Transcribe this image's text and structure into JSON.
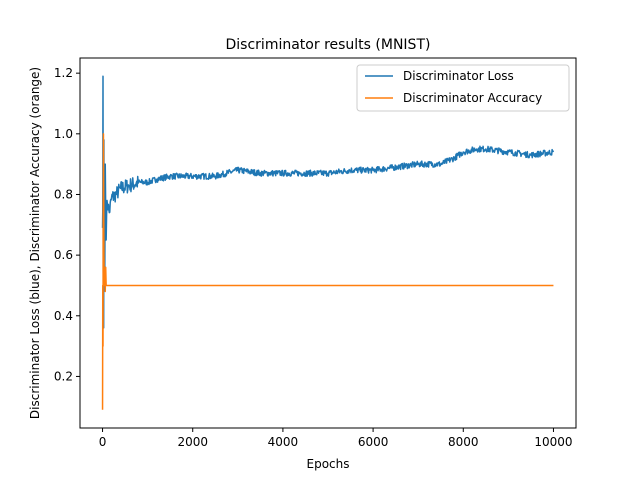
{
  "chart_data": {
    "type": "line",
    "title": "Discriminator results (MNIST)",
    "xlabel": "Epochs",
    "ylabel": "Discriminator Loss (blue), Discriminator Accuracy (orange)",
    "xlim": [
      -500,
      10500
    ],
    "ylim": [
      0.03,
      1.25
    ],
    "xticks": [
      0,
      2000,
      4000,
      6000,
      8000,
      10000
    ],
    "xtick_labels": [
      "0",
      "2000",
      "4000",
      "6000",
      "8000",
      "10000"
    ],
    "yticks": [
      0.2,
      0.4,
      0.6,
      0.8,
      1.0,
      1.2
    ],
    "ytick_labels": [
      "0.2",
      "0.4",
      "0.6",
      "0.8",
      "1.0",
      "1.2"
    ],
    "grid": false,
    "legend_position": "top-right",
    "series": [
      {
        "name": "Discriminator Loss",
        "color": "#1f77b4",
        "noise": 0.01,
        "x": [
          0,
          5,
          10,
          15,
          20,
          25,
          30,
          35,
          40,
          50,
          60,
          80,
          100,
          150,
          200,
          300,
          400,
          600,
          800,
          1000,
          1200,
          1500,
          1800,
          2000,
          2500,
          3000,
          3500,
          4000,
          4500,
          5000,
          5500,
          6000,
          6500,
          7000,
          7500,
          7800,
          8000,
          8300,
          8500,
          9000,
          9500,
          10000
        ],
        "y": [
          0.69,
          0.75,
          1.19,
          0.55,
          0.45,
          0.36,
          0.98,
          0.6,
          0.7,
          0.55,
          0.9,
          0.65,
          0.78,
          0.74,
          0.79,
          0.8,
          0.82,
          0.83,
          0.84,
          0.84,
          0.85,
          0.86,
          0.86,
          0.86,
          0.86,
          0.88,
          0.87,
          0.87,
          0.87,
          0.87,
          0.88,
          0.88,
          0.89,
          0.9,
          0.9,
          0.92,
          0.94,
          0.95,
          0.95,
          0.94,
          0.93,
          0.94
        ]
      },
      {
        "name": "Discriminator Accuracy",
        "color": "#ff7f0e",
        "noise": 0,
        "x": [
          0,
          5,
          10,
          15,
          20,
          25,
          30,
          40,
          50,
          60,
          70,
          80,
          100,
          150,
          300,
          1000,
          5000,
          10000
        ],
        "y": [
          0.09,
          0.5,
          0.3,
          0.8,
          1.0,
          0.8,
          0.6,
          0.5,
          0.55,
          0.48,
          0.56,
          0.5,
          0.5,
          0.5,
          0.5,
          0.5,
          0.5,
          0.5
        ]
      }
    ]
  }
}
